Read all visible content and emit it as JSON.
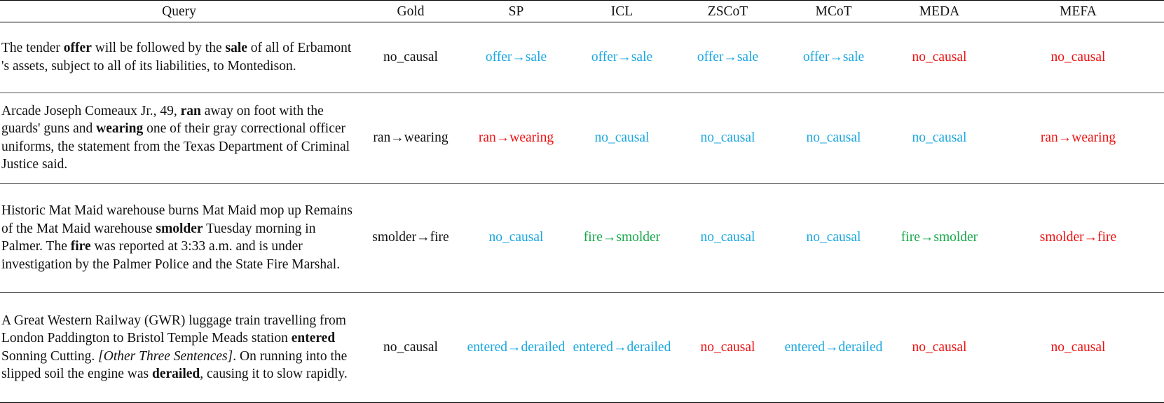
{
  "table": {
    "headers": [
      "Query",
      "Gold",
      "SP",
      "ICL",
      "ZSCoT",
      "MCoT",
      "MEDA",
      "MEFA"
    ],
    "status_colors": {
      "blue": "#1aa7e0",
      "red": "#ee1111",
      "green": "#17a84a",
      "black": "#111111"
    },
    "rows": [
      {
        "query": [
          {
            "t": "The tender ",
            "s": "n"
          },
          {
            "t": "offer",
            "s": "b"
          },
          {
            "t": " will be followed by the ",
            "s": "n"
          },
          {
            "t": "sale",
            "s": "b"
          },
          {
            "t": " of all of Erbamont 's assets, subject to all of its liabilities, to Montedison.",
            "s": "n"
          }
        ],
        "cells": [
          {
            "text": "no_causal",
            "color": "black"
          },
          {
            "text": "offer→sale",
            "color": "blue"
          },
          {
            "text": "offer→sale",
            "color": "blue"
          },
          {
            "text": "offer→sale",
            "color": "blue"
          },
          {
            "text": "offer→sale",
            "color": "blue"
          },
          {
            "text": "no_causal",
            "color": "red"
          },
          {
            "text": "no_causal",
            "color": "red"
          }
        ]
      },
      {
        "query": [
          {
            "t": "Arcade Joseph Comeaux Jr., 49, ",
            "s": "n"
          },
          {
            "t": "ran",
            "s": "b"
          },
          {
            "t": " away on foot with the guards' guns and ",
            "s": "n"
          },
          {
            "t": "wearing",
            "s": "b"
          },
          {
            "t": " one of their gray correctional officer uniforms, the statement from the Texas Department of Criminal Justice said.",
            "s": "n"
          }
        ],
        "cells": [
          {
            "text": "ran→wearing",
            "color": "black"
          },
          {
            "text": "ran→wearing",
            "color": "red"
          },
          {
            "text": "no_causal",
            "color": "blue"
          },
          {
            "text": "no_causal",
            "color": "blue"
          },
          {
            "text": "no_causal",
            "color": "blue"
          },
          {
            "text": "no_causal",
            "color": "blue"
          },
          {
            "text": "ran→wearing",
            "color": "red"
          }
        ]
      },
      {
        "query": [
          {
            "t": "Historic Mat Maid warehouse burns Mat Maid mop up Remains of the Mat Maid warehouse ",
            "s": "n"
          },
          {
            "t": "smolder",
            "s": "b"
          },
          {
            "t": " Tuesday morning in Palmer. The ",
            "s": "n"
          },
          {
            "t": "fire",
            "s": "b"
          },
          {
            "t": " was reported at 3:33 a.m. and is under investigation by the Palmer Police and the State Fire Marshal.",
            "s": "n"
          }
        ],
        "cells": [
          {
            "text": "smolder→fire",
            "color": "black"
          },
          {
            "text": "no_causal",
            "color": "blue"
          },
          {
            "text": "fire→smolder",
            "color": "green"
          },
          {
            "text": "no_causal",
            "color": "blue"
          },
          {
            "text": "no_causal",
            "color": "blue"
          },
          {
            "text": "fire→smolder",
            "color": "green"
          },
          {
            "text": "smolder→fire",
            "color": "red"
          }
        ]
      },
      {
        "query": [
          {
            "t": "A Great Western Railway (GWR) luggage train travelling from London Paddington to Bristol Temple Meads station ",
            "s": "n"
          },
          {
            "t": "entered",
            "s": "b"
          },
          {
            "t": " Sonning Cutting. ",
            "s": "n"
          },
          {
            "t": "[Other Three Sentences]",
            "s": "i"
          },
          {
            "t": ". On running into the slipped soil the engine was ",
            "s": "n"
          },
          {
            "t": "derailed",
            "s": "b"
          },
          {
            "t": ", causing it to slow rapidly.",
            "s": "n"
          }
        ],
        "cells": [
          {
            "text": "no_causal",
            "color": "black"
          },
          {
            "text": "entered→derailed",
            "color": "blue"
          },
          {
            "text": "entered→derailed",
            "color": "blue"
          },
          {
            "text": "no_causal",
            "color": "red"
          },
          {
            "text": "entered→derailed",
            "color": "blue"
          },
          {
            "text": "no_causal",
            "color": "red"
          },
          {
            "text": "no_causal",
            "color": "red"
          }
        ]
      }
    ]
  }
}
